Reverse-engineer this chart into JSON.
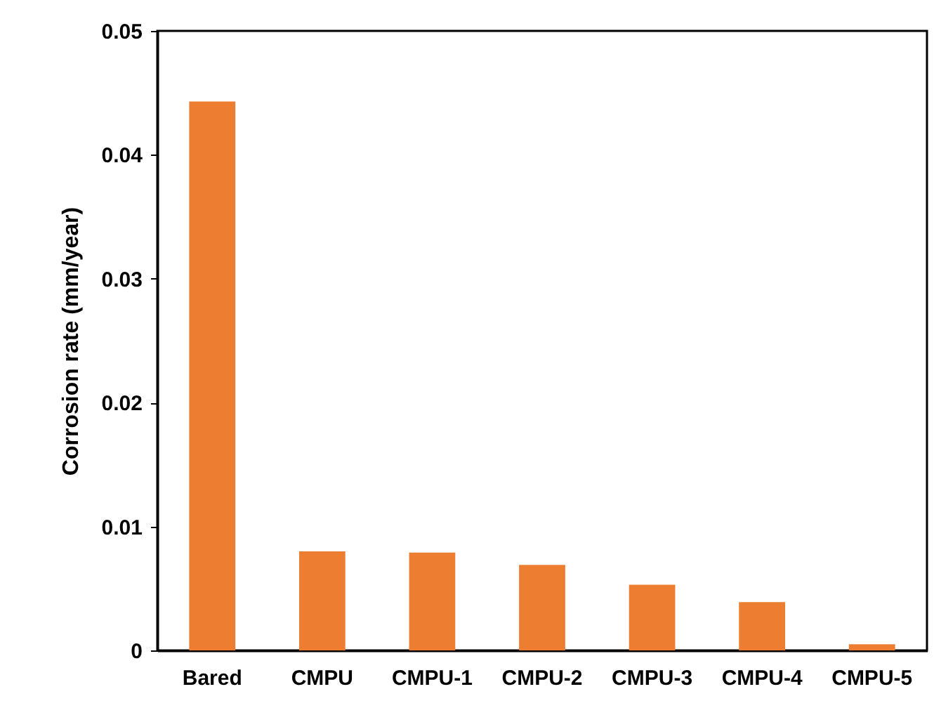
{
  "chart_data": {
    "type": "bar",
    "ylabel": "Corrosion rate (mm/year)",
    "categories": [
      "Bared",
      "CMPU",
      "CMPU-1",
      "CMPU-2",
      "CMPU-3",
      "CMPU-4",
      "CMPU-5"
    ],
    "values": [
      0.0443,
      0.008,
      0.0079,
      0.0069,
      0.0053,
      0.0039,
      0.0005
    ],
    "color": "#ed7d31",
    "ylim": [
      0,
      0.05
    ],
    "yticks": [
      0,
      0.01,
      0.02,
      0.03,
      0.04,
      0.05
    ],
    "grid": false
  }
}
